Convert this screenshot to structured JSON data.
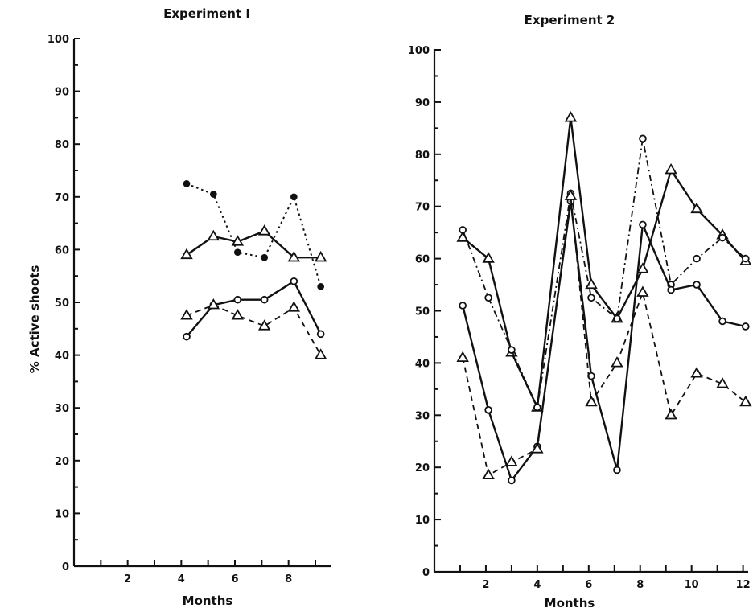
{
  "figure": {
    "ylabel": "% Active shoots",
    "xlabel_left": "Months",
    "xlabel_right": "Months"
  },
  "chart_data": [
    {
      "type": "line",
      "title": "Experiment I",
      "xlabel": "Months",
      "ylabel": "% Active shoots",
      "xlim": [
        0,
        9.6
      ],
      "ylim": [
        0,
        100
      ],
      "xticks": [
        2,
        4,
        6,
        8
      ],
      "yticks": [
        0,
        10,
        20,
        30,
        40,
        50,
        60,
        70,
        80,
        90,
        100
      ],
      "grid": false,
      "series": [
        {
          "style": "dotted",
          "marker": "filled-circle",
          "x": [
            4.2,
            5.2,
            6.1,
            7.1,
            8.2,
            9.2
          ],
          "y": [
            72.5,
            70.5,
            59.5,
            58.5,
            70.0,
            53.0
          ]
        },
        {
          "style": "solid",
          "marker": "triangle",
          "x": [
            4.2,
            5.2,
            6.1,
            7.1,
            8.2,
            9.2
          ],
          "y": [
            59.0,
            62.5,
            61.5,
            63.5,
            58.5,
            58.5
          ]
        },
        {
          "style": "solid",
          "marker": "circle",
          "x": [
            4.2,
            5.2,
            6.1,
            7.1,
            8.2,
            9.2
          ],
          "y": [
            43.5,
            49.5,
            50.5,
            50.5,
            54.0,
            44.0
          ]
        },
        {
          "style": "dashed",
          "marker": "triangle",
          "x": [
            4.2,
            5.2,
            6.1,
            7.1,
            8.2,
            9.2
          ],
          "y": [
            47.5,
            49.5,
            47.5,
            45.5,
            49.0,
            40.0
          ]
        }
      ]
    },
    {
      "type": "line",
      "title": "Experiment 2",
      "xlabel": "Months",
      "ylabel": "% Active shoots",
      "xlim": [
        0,
        12.2
      ],
      "ylim": [
        0,
        100
      ],
      "xticks": [
        2,
        4,
        6,
        8,
        10,
        12
      ],
      "yticks": [
        0,
        10,
        20,
        30,
        40,
        50,
        60,
        70,
        80,
        90,
        100
      ],
      "grid": false,
      "series": [
        {
          "style": "solid",
          "marker": "triangle",
          "x": [
            1.1,
            2.1,
            3.0,
            4.0,
            5.3,
            6.1,
            7.1,
            8.1,
            9.2,
            10.2,
            11.2,
            12.1
          ],
          "y": [
            64.0,
            60.0,
            42.0,
            31.5,
            87.0,
            55.0,
            48.5,
            58.0,
            77.0,
            69.5,
            64.5,
            59.5
          ]
        },
        {
          "style": "dash-dot",
          "marker": "circle",
          "x": [
            1.1,
            2.1,
            3.0,
            4.0,
            5.3,
            6.1,
            7.1,
            8.1,
            9.2,
            10.2,
            11.2,
            12.1
          ],
          "y": [
            65.5,
            52.5,
            42.5,
            31.5,
            72.5,
            52.5,
            48.5,
            83.0,
            55.0,
            60.0,
            64.0,
            60.0
          ]
        },
        {
          "style": "solid",
          "marker": "circle",
          "x": [
            1.1,
            2.1,
            3.0,
            4.0,
            5.3,
            6.1,
            7.1,
            8.1,
            9.2,
            10.2,
            11.2,
            12.1
          ],
          "y": [
            51.0,
            31.0,
            17.5,
            24.0,
            71.0,
            37.5,
            19.5,
            66.5,
            54.0,
            55.0,
            48.0,
            47.0
          ]
        },
        {
          "style": "dashed",
          "marker": "triangle",
          "x": [
            1.1,
            2.1,
            3.0,
            4.0,
            5.3,
            6.1,
            7.1,
            8.1,
            9.2,
            10.2,
            11.2,
            12.1
          ],
          "y": [
            41.0,
            18.5,
            21.0,
            23.5,
            72.0,
            32.5,
            40.0,
            53.5,
            30.0,
            38.0,
            36.0,
            32.5
          ]
        }
      ]
    }
  ]
}
